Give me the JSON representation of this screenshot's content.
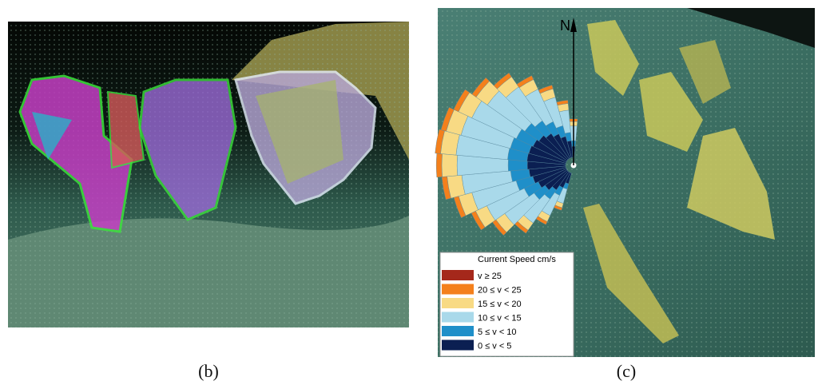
{
  "panels": [
    {
      "label": "(b)"
    },
    {
      "label": "(c)",
      "north_label": "N",
      "legend": {
        "title": "Current Speed cm/s",
        "entries": [
          {
            "label": "v ≥ 25",
            "color": "#a5281b"
          },
          {
            "label": "20 ≤ v < 25",
            "color": "#f4801c"
          },
          {
            "label": "15 ≤ v < 20",
            "color": "#f8da84"
          },
          {
            "label": "10 ≤ v < 15",
            "color": "#a9d9ea"
          },
          {
            "label": "5 ≤ v < 10",
            "color": "#1f8fc9"
          },
          {
            "label": "0 ≤ v < 5",
            "color": "#0b1f52"
          }
        ]
      }
    }
  ]
}
